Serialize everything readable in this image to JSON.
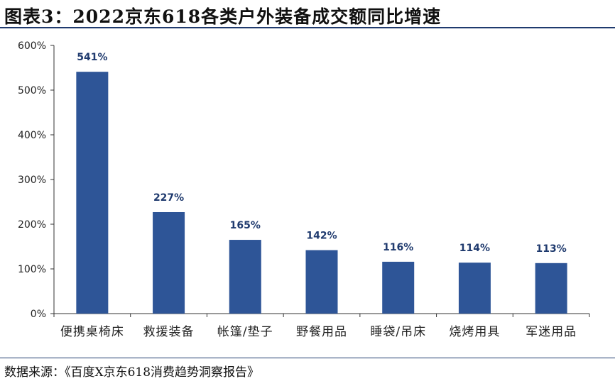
{
  "header": {
    "title": "图表3：2022京东618各类户外装备成交额同比增速"
  },
  "footer": {
    "source": "数据来源：《百度X京东618消费趋势洞察报告》"
  },
  "colors": {
    "bar": "#2e5597",
    "label": "#1f3a6e",
    "axis": "#333333"
  },
  "chart_data": {
    "type": "bar",
    "categories": [
      "便携桌椅床",
      "救援装备",
      "帐篷/垫子",
      "野餐用品",
      "睡袋/吊床",
      "烧烤用具",
      "军迷用品"
    ],
    "values": [
      541,
      227,
      165,
      142,
      116,
      114,
      113
    ],
    "data_labels": [
      "541%",
      "227%",
      "165%",
      "142%",
      "116%",
      "114%",
      "113%"
    ],
    "y_ticks": [
      "0%",
      "100%",
      "200%",
      "300%",
      "400%",
      "500%",
      "600%"
    ],
    "ylim": [
      0,
      600
    ],
    "title": "图表3：2022京东618各类户外装备成交额同比增速",
    "grid": false,
    "legend": "none"
  }
}
